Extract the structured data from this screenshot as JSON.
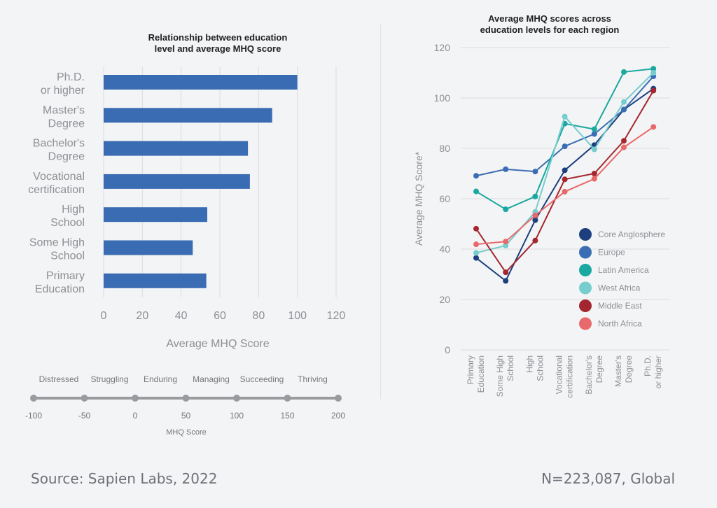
{
  "chart_data": [
    {
      "type": "bar",
      "orientation": "horizontal",
      "title": "Relationship between education level and average MHQ score",
      "title_lines": [
        "Relationship between education",
        "level and average MHQ score"
      ],
      "categories": [
        [
          "Ph.D.",
          "or higher"
        ],
        [
          "Master's",
          "Degree"
        ],
        [
          "Bachelor's",
          "Degree"
        ],
        [
          "Vocational",
          "certification"
        ],
        [
          "High",
          "School"
        ],
        [
          "Some High",
          "School"
        ],
        [
          "Primary",
          "Education"
        ]
      ],
      "values": [
        100,
        87,
        74.5,
        75.5,
        53.5,
        46,
        53
      ],
      "xlabel": "Average MHQ Score",
      "xlim": [
        0,
        120
      ],
      "xticks": [
        "0",
        "20",
        "40",
        "60",
        "80",
        "100",
        "120"
      ],
      "grid": "vertical",
      "bar_color": "#3a6cb3"
    },
    {
      "type": "scale",
      "label": "MHQ Score",
      "ticks": [
        "-100",
        "-50",
        "0",
        "50",
        "100",
        "150",
        "200"
      ],
      "bands": [
        "Distressed",
        "Struggling",
        "Enduring",
        "Managing",
        "Succeeding",
        "Thriving"
      ],
      "color": "#9a9b9e"
    },
    {
      "type": "line",
      "title": "Average MHQ scores across education levels for each region",
      "title_lines": [
        "Average MHQ scores across",
        "education levels for each region"
      ],
      "categories": [
        [
          "Primary",
          "Education"
        ],
        [
          "Some High",
          "School"
        ],
        [
          "High",
          "School"
        ],
        [
          "Vocational",
          "certification"
        ],
        [
          "Bachelor's",
          "Degree"
        ],
        [
          "Master's",
          "Degree"
        ],
        [
          "Ph.D.",
          "or higher"
        ]
      ],
      "ylabel": "Average MHQ Score*",
      "ylim": [
        0,
        120
      ],
      "yticks": [
        "0",
        "20",
        "40",
        "60",
        "80",
        "100",
        "120"
      ],
      "grid": "horizontal",
      "legend": "bottom-right",
      "series": [
        {
          "name": "Core Anglosphere",
          "color": "#1d3f7e",
          "values": [
            36.5,
            27.4,
            51.5,
            71.3,
            81.3,
            95.4,
            103.7
          ]
        },
        {
          "name": "Europe",
          "color": "#3b6db4",
          "values": [
            69.1,
            71.7,
            70.8,
            80.8,
            85.7,
            95.4,
            108.6
          ]
        },
        {
          "name": "Latin America",
          "color": "#1aa8a0",
          "values": [
            62.9,
            55.8,
            60.9,
            89.8,
            87.6,
            110.3,
            111.6
          ]
        },
        {
          "name": "West Africa",
          "color": "#76cdcd",
          "values": [
            38.5,
            41.4,
            54.8,
            92.6,
            79.6,
            98.4,
            110.0
          ]
        },
        {
          "name": "Middle East",
          "color": "#a4272f",
          "values": [
            48.1,
            30.8,
            43.4,
            67.7,
            70.0,
            83.0,
            102.9
          ]
        },
        {
          "name": "North Africa",
          "color": "#e8696b",
          "values": [
            41.9,
            43.0,
            53.4,
            62.8,
            67.9,
            80.4,
            88.5
          ]
        }
      ]
    }
  ],
  "footer": {
    "source": "Source: Sapien Labs, 2022",
    "sample": "N=223,087, Global"
  }
}
